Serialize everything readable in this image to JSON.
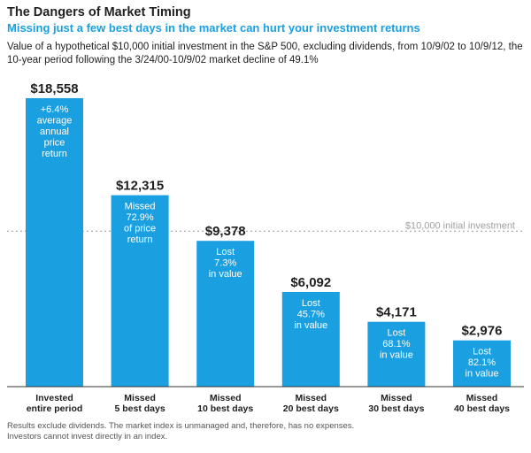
{
  "header": {
    "title": "The Dangers of Market Timing",
    "subtitle": "Missing just a few best days in the market can hurt your investment returns",
    "description": "Value of a hypothetical $10,000 initial investment in the S&P 500, excluding dividends, from 10/9/02 to 10/9/12, the 10-year period following the 3/24/00-10/9/02 market decline of 49.1%"
  },
  "footer": {
    "note_line1": "Results exclude dividends. The market index is unmanaged and, therefore, has no expenses.",
    "note_line2": "Investors cannot invest directly in an index."
  },
  "colors": {
    "bar": "#1a9fe0",
    "subtitle": "#1a9fe0",
    "reference_line": "#999999",
    "reference_label": "#a0a0a0"
  },
  "chart_data": {
    "type": "bar",
    "categories": [
      [
        "Invested",
        "entire period"
      ],
      [
        "Missed",
        "5 best days"
      ],
      [
        "Missed",
        "10 best days"
      ],
      [
        "Missed",
        "20 best days"
      ],
      [
        "Missed",
        "30 best days"
      ],
      [
        "Missed",
        "40 best days"
      ]
    ],
    "values": [
      18558,
      12315,
      9378,
      6092,
      4171,
      2976
    ],
    "value_labels": [
      "$18,558",
      "$12,315",
      "$9,378",
      "$6,092",
      "$4,171",
      "$2,976"
    ],
    "bar_annotations": [
      [
        "+6.4%",
        "average",
        "annual",
        "price",
        "return"
      ],
      [
        "Missed",
        "72.9%",
        "of price",
        "return"
      ],
      [
        "Lost",
        "7.3%",
        "in value"
      ],
      [
        "Lost",
        "45.7%",
        "in value"
      ],
      [
        "Lost",
        "68.1%",
        "in value"
      ],
      [
        "Lost",
        "82.1%",
        "in value"
      ]
    ],
    "reference_line": {
      "value": 10000,
      "label": "$10,000 initial investment"
    },
    "ylim": [
      0,
      20000
    ],
    "grid": false
  }
}
